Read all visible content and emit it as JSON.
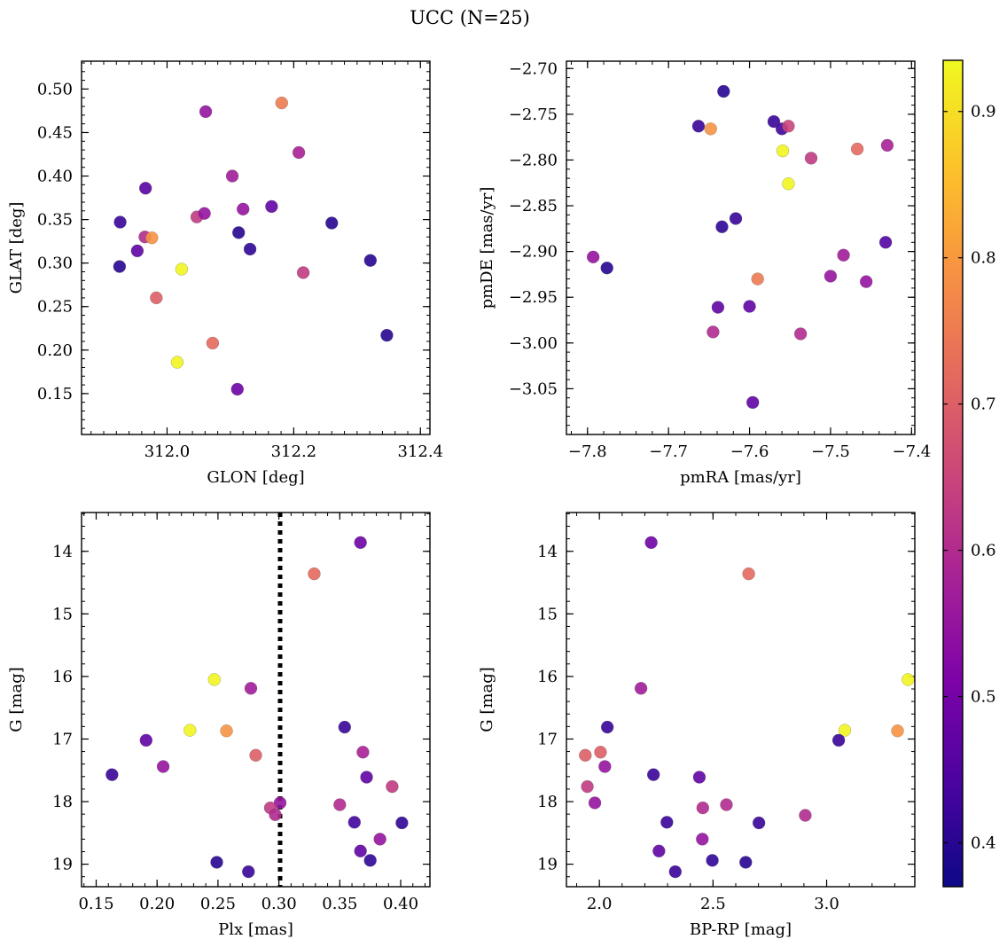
{
  "figure": {
    "title": "UCC (N=25)"
  },
  "colorbar": {
    "cmap": "plasma",
    "vmin": 0.37,
    "vmax": 0.935,
    "ticks": [
      0.4,
      0.5,
      0.6,
      0.7,
      0.8,
      0.9
    ],
    "tick_labels": [
      "0.4",
      "0.5",
      "0.6",
      "0.7",
      "0.8",
      "0.9"
    ]
  },
  "chart_data": [
    {
      "type": "scatter",
      "name": "glon-glat",
      "xlabel": "GLON [deg]",
      "ylabel": "GLAT [deg]",
      "xlim": [
        311.865,
        312.415
      ],
      "ylim": [
        0.103,
        0.532
      ],
      "invert_y": false,
      "xticks": [
        312.0,
        312.2,
        312.4
      ],
      "xtick_labels": [
        "312.0",
        "312.2",
        "312.4"
      ],
      "yticks": [
        0.15,
        0.2,
        0.25,
        0.3,
        0.35,
        0.4,
        0.45,
        0.5
      ],
      "ytick_labels": [
        "0.15",
        "0.20",
        "0.25",
        "0.30",
        "0.35",
        "0.40",
        "0.45",
        "0.50"
      ],
      "x_minor_step": 0.02,
      "y_minor_step": 0.01,
      "points": [
        {
          "x": 311.926,
          "y": 0.347,
          "c": 0.42
        },
        {
          "x": 311.925,
          "y": 0.296,
          "c": 0.4
        },
        {
          "x": 311.966,
          "y": 0.386,
          "c": 0.46
        },
        {
          "x": 311.953,
          "y": 0.314,
          "c": 0.47
        },
        {
          "x": 311.965,
          "y": 0.33,
          "c": 0.6
        },
        {
          "x": 311.976,
          "y": 0.329,
          "c": 0.79
        },
        {
          "x": 311.983,
          "y": 0.26,
          "c": 0.7
        },
        {
          "x": 312.016,
          "y": 0.186,
          "c": 0.93
        },
        {
          "x": 312.023,
          "y": 0.293,
          "c": 0.93
        },
        {
          "x": 312.047,
          "y": 0.353,
          "c": 0.63
        },
        {
          "x": 312.059,
          "y": 0.357,
          "c": 0.55
        },
        {
          "x": 312.061,
          "y": 0.474,
          "c": 0.55
        },
        {
          "x": 312.072,
          "y": 0.208,
          "c": 0.72
        },
        {
          "x": 312.103,
          "y": 0.4,
          "c": 0.57
        },
        {
          "x": 312.111,
          "y": 0.155,
          "c": 0.49
        },
        {
          "x": 312.113,
          "y": 0.335,
          "c": 0.4
        },
        {
          "x": 312.12,
          "y": 0.362,
          "c": 0.55
        },
        {
          "x": 312.131,
          "y": 0.316,
          "c": 0.41
        },
        {
          "x": 312.165,
          "y": 0.365,
          "c": 0.47
        },
        {
          "x": 312.181,
          "y": 0.484,
          "c": 0.75
        },
        {
          "x": 312.208,
          "y": 0.427,
          "c": 0.58
        },
        {
          "x": 312.215,
          "y": 0.289,
          "c": 0.63
        },
        {
          "x": 312.26,
          "y": 0.346,
          "c": 0.4
        },
        {
          "x": 312.321,
          "y": 0.303,
          "c": 0.4
        },
        {
          "x": 312.347,
          "y": 0.217,
          "c": 0.4
        }
      ]
    },
    {
      "type": "scatter",
      "name": "pmra-pmde",
      "xlabel": "pmRA [mas/yr]",
      "ylabel": "pmDE [mas/yr]",
      "xlim": [
        -7.826,
        -7.396
      ],
      "ylim": [
        -3.1,
        -2.692
      ],
      "invert_y": false,
      "xticks": [
        -7.8,
        -7.7,
        -7.6,
        -7.5,
        -7.4
      ],
      "xtick_labels": [
        "−7.8",
        "−7.7",
        "−7.6",
        "−7.5",
        "−7.4"
      ],
      "yticks": [
        -3.05,
        -3.0,
        -2.95,
        -2.9,
        -2.85,
        -2.8,
        -2.75,
        -2.7
      ],
      "ytick_labels": [
        "−3.05",
        "−3.00",
        "−2.95",
        "−2.90",
        "−2.85",
        "−2.80",
        "−2.75",
        "−2.70"
      ],
      "x_minor_step": 0.02,
      "y_minor_step": 0.01,
      "points": [
        {
          "x": -7.632,
          "y": -2.725,
          "c": 0.4
        },
        {
          "x": -7.663,
          "y": -2.763,
          "c": 0.42
        },
        {
          "x": -7.648,
          "y": -2.766,
          "c": 0.79
        },
        {
          "x": -7.57,
          "y": -2.758,
          "c": 0.42
        },
        {
          "x": -7.56,
          "y": -2.766,
          "c": 0.43
        },
        {
          "x": -7.552,
          "y": -2.763,
          "c": 0.65
        },
        {
          "x": -7.559,
          "y": -2.79,
          "c": 0.93
        },
        {
          "x": -7.552,
          "y": -2.826,
          "c": 0.93
        },
        {
          "x": -7.524,
          "y": -2.798,
          "c": 0.63
        },
        {
          "x": -7.467,
          "y": -2.788,
          "c": 0.72
        },
        {
          "x": -7.43,
          "y": -2.784,
          "c": 0.58
        },
        {
          "x": -7.617,
          "y": -2.864,
          "c": 0.42
        },
        {
          "x": -7.634,
          "y": -2.873,
          "c": 0.41
        },
        {
          "x": -7.432,
          "y": -2.89,
          "c": 0.45
        },
        {
          "x": -7.793,
          "y": -2.906,
          "c": 0.55
        },
        {
          "x": -7.776,
          "y": -2.918,
          "c": 0.4
        },
        {
          "x": -7.484,
          "y": -2.904,
          "c": 0.57
        },
        {
          "x": -7.5,
          "y": -2.927,
          "c": 0.55
        },
        {
          "x": -7.59,
          "y": -2.93,
          "c": 0.75
        },
        {
          "x": -7.456,
          "y": -2.933,
          "c": 0.55
        },
        {
          "x": -7.639,
          "y": -2.961,
          "c": 0.47
        },
        {
          "x": -7.6,
          "y": -2.96,
          "c": 0.47
        },
        {
          "x": -7.645,
          "y": -2.988,
          "c": 0.6
        },
        {
          "x": -7.537,
          "y": -2.99,
          "c": 0.6
        },
        {
          "x": -7.596,
          "y": -3.065,
          "c": 0.47
        }
      ]
    },
    {
      "type": "scatter",
      "name": "plx-g",
      "xlabel": "Plx [mas]",
      "ylabel": "G [mag]",
      "xlim": [
        0.138,
        0.424
      ],
      "ylim": [
        19.36,
        13.38
      ],
      "invert_y": true,
      "xticks": [
        0.15,
        0.2,
        0.25,
        0.3,
        0.35,
        0.4
      ],
      "xtick_labels": [
        "0.15",
        "0.20",
        "0.25",
        "0.30",
        "0.35",
        "0.40"
      ],
      "yticks": [
        14,
        15,
        16,
        17,
        18,
        19
      ],
      "ytick_labels": [
        "14",
        "15",
        "16",
        "17",
        "18",
        "19"
      ],
      "x_minor_step": 0.01,
      "y_minor_step": 0.2,
      "vline": {
        "x": 0.301,
        "style": "dotted"
      },
      "points": [
        {
          "x": 0.367,
          "y": 13.86,
          "c": 0.49
        },
        {
          "x": 0.329,
          "y": 14.36,
          "c": 0.72
        },
        {
          "x": 0.247,
          "y": 16.05,
          "c": 0.93
        },
        {
          "x": 0.277,
          "y": 16.19,
          "c": 0.57
        },
        {
          "x": 0.354,
          "y": 16.81,
          "c": 0.42
        },
        {
          "x": 0.227,
          "y": 16.86,
          "c": 0.93
        },
        {
          "x": 0.257,
          "y": 16.87,
          "c": 0.79
        },
        {
          "x": 0.191,
          "y": 17.02,
          "c": 0.47
        },
        {
          "x": 0.369,
          "y": 17.21,
          "c": 0.58
        },
        {
          "x": 0.281,
          "y": 17.26,
          "c": 0.7
        },
        {
          "x": 0.205,
          "y": 17.44,
          "c": 0.55
        },
        {
          "x": 0.163,
          "y": 17.57,
          "c": 0.42
        },
        {
          "x": 0.372,
          "y": 17.61,
          "c": 0.47
        },
        {
          "x": 0.393,
          "y": 17.76,
          "c": 0.63
        },
        {
          "x": 0.301,
          "y": 18.02,
          "c": 0.55
        },
        {
          "x": 0.35,
          "y": 18.05,
          "c": 0.6
        },
        {
          "x": 0.293,
          "y": 18.1,
          "c": 0.63
        },
        {
          "x": 0.297,
          "y": 18.21,
          "c": 0.6
        },
        {
          "x": 0.362,
          "y": 18.33,
          "c": 0.43
        },
        {
          "x": 0.401,
          "y": 18.34,
          "c": 0.41
        },
        {
          "x": 0.383,
          "y": 18.6,
          "c": 0.55
        },
        {
          "x": 0.367,
          "y": 18.79,
          "c": 0.47
        },
        {
          "x": 0.375,
          "y": 18.94,
          "c": 0.41
        },
        {
          "x": 0.249,
          "y": 18.97,
          "c": 0.4
        },
        {
          "x": 0.275,
          "y": 19.12,
          "c": 0.42
        }
      ]
    },
    {
      "type": "scatter",
      "name": "bprp-g",
      "xlabel": "BP-RP [mag]",
      "ylabel": "G [mag]",
      "xlim": [
        1.855,
        3.388
      ],
      "ylim": [
        19.36,
        13.38
      ],
      "invert_y": true,
      "xticks": [
        2.0,
        2.5,
        3.0
      ],
      "xtick_labels": [
        "2.0",
        "2.5",
        "3.0"
      ],
      "yticks": [
        14,
        15,
        16,
        17,
        18,
        19
      ],
      "ytick_labels": [
        "14",
        "15",
        "16",
        "17",
        "18",
        "19"
      ],
      "x_minor_step": 0.1,
      "y_minor_step": 0.2,
      "points": [
        {
          "x": 2.228,
          "y": 13.86,
          "c": 0.49
        },
        {
          "x": 2.657,
          "y": 14.36,
          "c": 0.72
        },
        {
          "x": 3.358,
          "y": 16.05,
          "c": 0.93
        },
        {
          "x": 2.183,
          "y": 16.19,
          "c": 0.57
        },
        {
          "x": 2.035,
          "y": 16.81,
          "c": 0.42
        },
        {
          "x": 3.08,
          "y": 16.86,
          "c": 0.93
        },
        {
          "x": 3.312,
          "y": 16.87,
          "c": 0.79
        },
        {
          "x": 3.053,
          "y": 17.02,
          "c": 0.42
        },
        {
          "x": 2.005,
          "y": 17.21,
          "c": 0.7
        },
        {
          "x": 1.938,
          "y": 17.26,
          "c": 0.7
        },
        {
          "x": 2.024,
          "y": 17.44,
          "c": 0.55
        },
        {
          "x": 2.238,
          "y": 17.57,
          "c": 0.42
        },
        {
          "x": 2.44,
          "y": 17.61,
          "c": 0.47
        },
        {
          "x": 1.947,
          "y": 17.76,
          "c": 0.63
        },
        {
          "x": 1.98,
          "y": 18.02,
          "c": 0.55
        },
        {
          "x": 2.559,
          "y": 18.05,
          "c": 0.6
        },
        {
          "x": 2.455,
          "y": 18.1,
          "c": 0.6
        },
        {
          "x": 2.906,
          "y": 18.22,
          "c": 0.6
        },
        {
          "x": 2.297,
          "y": 18.33,
          "c": 0.42
        },
        {
          "x": 2.702,
          "y": 18.34,
          "c": 0.42
        },
        {
          "x": 2.453,
          "y": 18.6,
          "c": 0.55
        },
        {
          "x": 2.262,
          "y": 18.79,
          "c": 0.47
        },
        {
          "x": 2.497,
          "y": 18.94,
          "c": 0.41
        },
        {
          "x": 2.644,
          "y": 18.97,
          "c": 0.4
        },
        {
          "x": 2.334,
          "y": 19.12,
          "c": 0.42
        }
      ]
    }
  ]
}
